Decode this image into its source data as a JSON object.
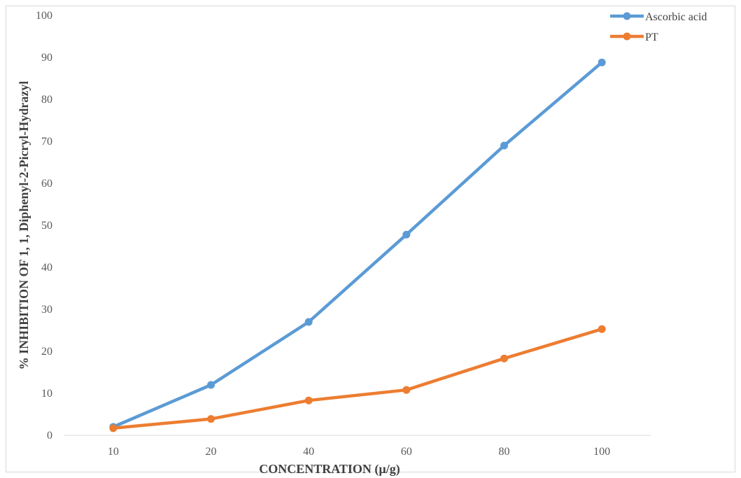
{
  "chart_data": {
    "type": "line",
    "title": "",
    "xlabel": "CONCENTRATION (µ/g)",
    "ylabel": "% INHIBITION OF 1, 1, Diphenyl-2-Picryl-Hydrazyl",
    "categories": [
      "10",
      "20",
      "40",
      "60",
      "80",
      "100"
    ],
    "ylim": [
      0,
      100
    ],
    "yticks": [
      0,
      10,
      20,
      30,
      40,
      50,
      60,
      70,
      80,
      90,
      100
    ],
    "grid": false,
    "legend_position": "top-right",
    "series": [
      {
        "name": "Ascorbic acid",
        "color": "#5b9bd5",
        "values": [
          2.0,
          12.0,
          27.0,
          47.8,
          69.0,
          88.8
        ]
      },
      {
        "name": "PT",
        "color": "#ed7d31",
        "values": [
          1.7,
          3.9,
          8.3,
          10.8,
          18.3,
          25.3
        ]
      }
    ]
  }
}
